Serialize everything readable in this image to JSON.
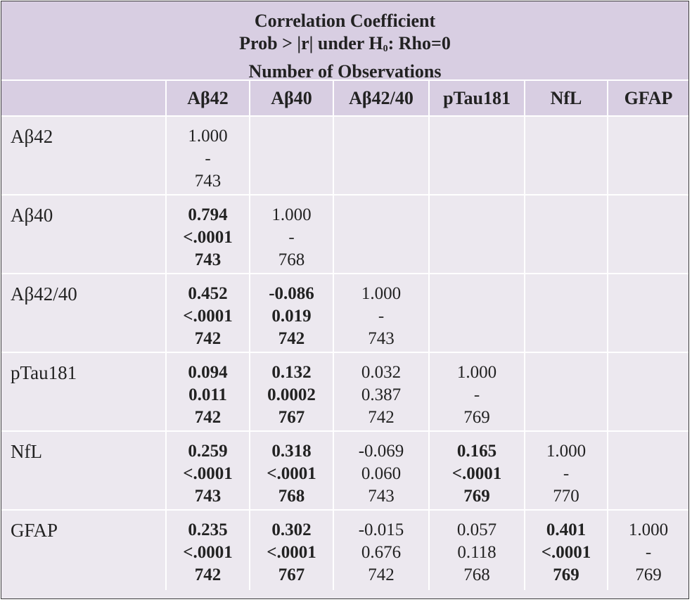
{
  "title": {
    "line1": "Correlation Coefficient",
    "line2_a": "Prob > |r| under H",
    "line2_sub": "0",
    "line2_b": ":  Rho=0",
    "line3": "Number of Observations"
  },
  "columns": [
    "",
    "Aβ42",
    "Aβ40",
    "Aβ42/40",
    "pTau181",
    "NfL",
    "GFAP"
  ],
  "rows": [
    {
      "label": "Aβ42",
      "cells": [
        {
          "r": "1.000",
          "p": "-",
          "n": "743",
          "bold": false
        }
      ]
    },
    {
      "label": "Aβ40",
      "cells": [
        {
          "r": "0.794",
          "p": "<.0001",
          "n": "743",
          "bold": true
        },
        {
          "r": "1.000",
          "p": "-",
          "n": "768",
          "bold": false
        }
      ]
    },
    {
      "label": "Aβ42/40",
      "cells": [
        {
          "r": "0.452",
          "p": "<.0001",
          "n": "742",
          "bold": true
        },
        {
          "r": "-0.086",
          "p": "0.019",
          "n": "742",
          "bold": true
        },
        {
          "r": "1.000",
          "p": "-",
          "n": "743",
          "bold": false
        }
      ]
    },
    {
      "label": "pTau181",
      "cells": [
        {
          "r": "0.094",
          "p": "0.011",
          "n": "742",
          "bold": true
        },
        {
          "r": "0.132",
          "p": "0.0002",
          "n": "767",
          "bold": true
        },
        {
          "r": "0.032",
          "p": "0.387",
          "n": "742",
          "bold": false
        },
        {
          "r": "1.000",
          "p": "-",
          "n": "769",
          "bold": false
        }
      ]
    },
    {
      "label": "NfL",
      "cells": [
        {
          "r": "0.259",
          "p": "<.0001",
          "n": "743",
          "bold": true
        },
        {
          "r": "0.318",
          "p": "<.0001",
          "n": "768",
          "bold": true
        },
        {
          "r": "-0.069",
          "p": "0.060",
          "n": "743",
          "bold": false
        },
        {
          "r": "0.165",
          "p": "<.0001",
          "n": "769",
          "bold": true
        },
        {
          "r": "1.000",
          "p": "-",
          "n": "770",
          "bold": false
        }
      ]
    },
    {
      "label": "GFAP",
      "cells": [
        {
          "r": "0.235",
          "p": "<.0001",
          "n": "742",
          "bold": true
        },
        {
          "r": "0.302",
          "p": "<.0001",
          "n": "767",
          "bold": true
        },
        {
          "r": "-0.015",
          "p": "0.676",
          "n": "742",
          "bold": false
        },
        {
          "r": "0.057",
          "p": "0.118",
          "n": "768",
          "bold": false
        },
        {
          "r": "0.401",
          "p": "<.0001",
          "n": "769",
          "bold": true
        },
        {
          "r": "1.000",
          "p": "-",
          "n": "769",
          "bold": false
        }
      ]
    }
  ],
  "colors": {
    "header_bg": "#d8cee2",
    "body_bg": "#ece8ef",
    "grid_line": "#ffffff"
  }
}
